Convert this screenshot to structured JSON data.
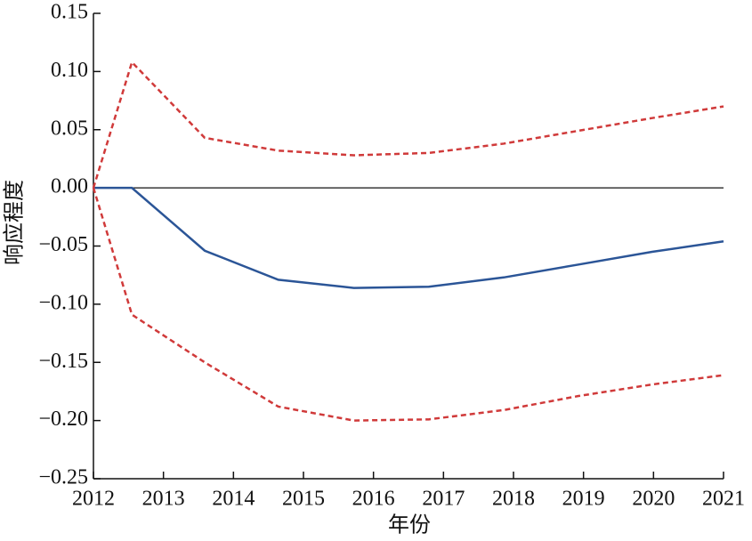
{
  "chart_data": {
    "type": "line",
    "xlabel": "年份",
    "ylabel": "响应程度",
    "x": [
      2012,
      2012.55,
      2013.59,
      2014.64,
      2015.72,
      2016.79,
      2017.86,
      2018.92,
      2019.98,
      2021
    ],
    "series": [
      {
        "color": "#2b5597",
        "dashed": false,
        "values": [
          0,
          0,
          -0.054,
          -0.079,
          -0.086,
          -0.085,
          -0.077,
          -0.066,
          -0.055,
          -0.046
        ]
      },
      {
        "color": "#d03a3a",
        "dashed": true,
        "values": [
          0,
          0.108,
          0.043,
          0.032,
          0.028,
          0.03,
          0.038,
          0.049,
          0.06,
          0.07
        ]
      },
      {
        "color": "#d03a3a",
        "dashed": true,
        "values": [
          0,
          -0.109,
          -0.15,
          -0.188,
          -0.2,
          -0.199,
          -0.191,
          -0.179,
          -0.169,
          -0.161
        ]
      }
    ],
    "reference_line": 0,
    "xlim": [
      2012,
      2021
    ],
    "xticks": [
      2012,
      2013,
      2014,
      2015,
      2016,
      2017,
      2018,
      2019,
      2020,
      2021
    ],
    "ylim": [
      -0.25,
      0.15
    ],
    "yticks": [
      0.15,
      {
        "value": 0.1,
        "label": "0.10"
      },
      0.05,
      {
        "value": 0,
        "label": "0.00"
      },
      {
        "value": -0.05,
        "label": "−0.05"
      },
      {
        "value": -0.1,
        "label": "−0.10"
      },
      {
        "value": -0.15,
        "label": "−0.15"
      },
      {
        "value": -0.2,
        "label": "−0.20"
      },
      {
        "value": -0.25,
        "label": "−0.25"
      }
    ],
    "grid": false
  }
}
